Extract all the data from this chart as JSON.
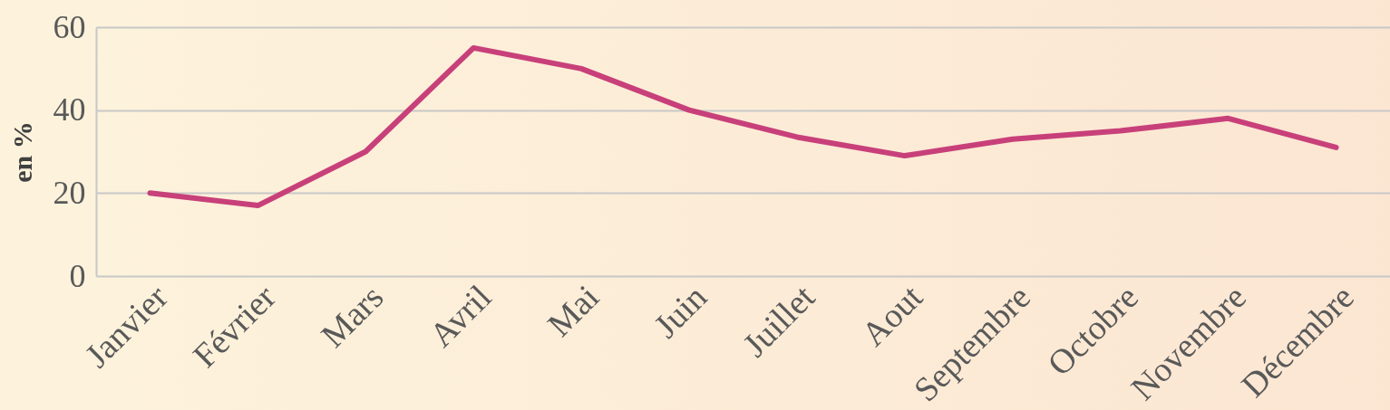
{
  "chart_data": {
    "type": "line",
    "ylabel": "en %",
    "categories": [
      "Janvier",
      "Février",
      "Mars",
      "Avril",
      "Mai",
      "Juin",
      "Juillet",
      "Aout",
      "Septembre",
      "Octobre",
      "Novembre",
      "Décembre"
    ],
    "series": [
      {
        "color": "#c8407a",
        "values": [
          20,
          17,
          30,
          55,
          50,
          40,
          33.5,
          29,
          33,
          35,
          38,
          31
        ]
      }
    ],
    "ylim": [
      0,
      60
    ],
    "yticks": [
      0,
      20,
      40,
      60
    ],
    "grid": "y",
    "marker": "none",
    "line_style": "solid"
  }
}
